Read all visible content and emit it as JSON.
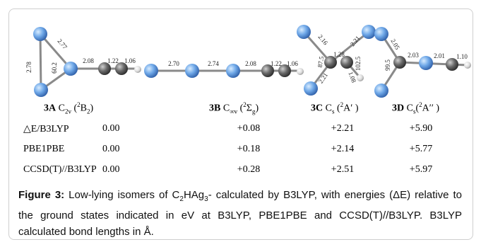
{
  "structures": [
    {
      "bonds": [
        "2.78",
        "2.77",
        "60.2",
        "2.08",
        "1.22",
        "1.06"
      ]
    },
    {
      "bonds": [
        "2.70",
        "2.74",
        "2.08",
        "1.22",
        "1.06"
      ]
    },
    {
      "bonds": [
        "2.16",
        "87.5",
        "1.28",
        "2.21",
        "2.21",
        "102.5",
        "1.08"
      ]
    },
    {
      "bonds": [
        "2.05",
        "99.5",
        "2.03",
        "2.01",
        "1.10"
      ]
    }
  ],
  "isomers": [
    [
      "3A",
      "C",
      "2v",
      "(",
      "2",
      "B",
      "2",
      ")"
    ],
    [
      "3B",
      "C",
      "∞v",
      "(",
      "2",
      "Σ",
      "g",
      ")"
    ],
    [
      "3C",
      "C",
      "s",
      "(",
      "2",
      "A′",
      ")"
    ],
    [
      "3D",
      "C",
      "s",
      "(",
      "2",
      "A′′",
      ")"
    ]
  ],
  "table": {
    "rows": [
      [
        "△E/B3LYP",
        "0.00",
        "+0.08",
        "+2.21",
        "+5.90"
      ],
      [
        "PBE1PBE",
        "0.00",
        "+0.18",
        "+2.14",
        "+5.77"
      ],
      [
        "CCSD(T)//B3LYP",
        "0.00",
        "+0.28",
        "+2.51",
        "+5.97"
      ]
    ]
  },
  "caption": {
    "label": "Figure 3:",
    "text": [
      "Low-lying isomers of C",
      "2",
      "HAg",
      "3",
      "- calculated by B3LYP, with energies (ΔE) relative to the ground states indicated in eV at B3LYP, PBE1PBE and CCSD(T)//B3LYP. B3LYP calculated bond lengths in Å."
    ]
  }
}
